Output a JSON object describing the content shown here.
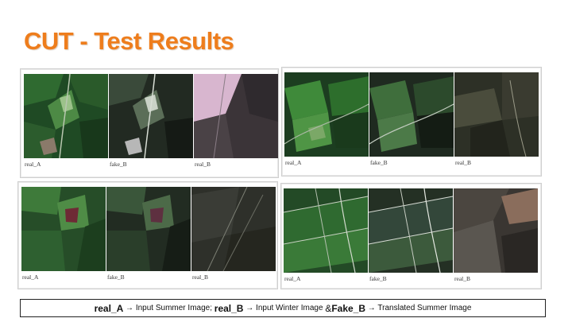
{
  "title": "CUT - Test Results",
  "panels": [
    {
      "labels": [
        "real_A",
        "fake_B",
        "real_B"
      ]
    },
    {
      "labels": [
        "real_A",
        "fake_B",
        "real_B"
      ]
    },
    {
      "labels": [
        "real_A",
        "fake_B",
        "real_B"
      ]
    },
    {
      "labels": [
        "real_A",
        "fake_B",
        "real_B"
      ]
    }
  ],
  "caption": {
    "t1": "real_A",
    "t2": " → Input Summer Image; ",
    "t3": "real_B",
    "t4": " → Input Winter Image ",
    "t5": "& ",
    "t6": "Fake_B",
    "t7": " → Translated Summer Image"
  },
  "image_kinds": [
    "summer-satellite",
    "translated-satellite",
    "winter-satellite"
  ]
}
